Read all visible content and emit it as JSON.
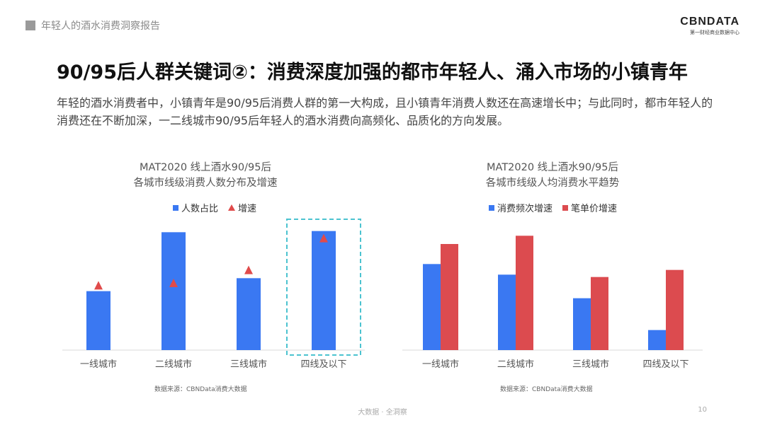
{
  "header": {
    "section": "年轻人的酒水消费洞察报告",
    "brand": "CBNDATA",
    "brand_sub": "第一财经商业数据中心"
  },
  "title": "90/95后人群关键词②：消费深度加强的都市年轻人、涌入市场的小镇青年",
  "description": "年轻的酒水消费者中，小镇青年是90/95后消费人群的第一大构成，且小镇青年消费人数还在高速增长中；与此同时，都市年轻人的消费还在不断加深，一二线城市90/95后年轻人的酒水消费向高频化、品质化的方向发展。",
  "footer": {
    "text": "大数据 · 全洞察",
    "page": "10"
  },
  "colors": {
    "blue": "#3a78f2",
    "red": "#dc4b4f",
    "dash": "#4cc3d0"
  },
  "chart_data": [
    {
      "type": "bar",
      "title_line1": "MAT2020 线上酒水90/95后",
      "title_line2": "各城市线级消费人数分布及增速",
      "legend": [
        "人数占比",
        "增速"
      ],
      "categories": [
        "一线城市",
        "二线城市",
        "三线城市",
        "四线及以下"
      ],
      "series": [
        {
          "name": "人数占比",
          "kind": "bar",
          "values": [
            50,
            100,
            61,
            101
          ]
        },
        {
          "name": "增速",
          "kind": "marker",
          "values": [
            55,
            57,
            68,
            95
          ]
        }
      ],
      "ylim": [
        0,
        105
      ],
      "highlight_category": "四线及以下",
      "source": "数据来源：CBNData消费大数据"
    },
    {
      "type": "bar",
      "title_line1": "MAT2020 线上酒水90/95后",
      "title_line2": "各城市线级人均消费水平趋势",
      "legend": [
        "消费频次增速",
        "笔单价增速"
      ],
      "categories": [
        "一线城市",
        "二线城市",
        "三线城市",
        "四线及以下"
      ],
      "series": [
        {
          "name": "消费频次增速",
          "values": [
            73,
            64,
            44,
            17
          ]
        },
        {
          "name": "笔单价增速",
          "values": [
            90,
            97,
            62,
            68
          ]
        }
      ],
      "ylim": [
        0,
        105
      ],
      "source": "数据来源：CBNData消费大数据"
    }
  ]
}
